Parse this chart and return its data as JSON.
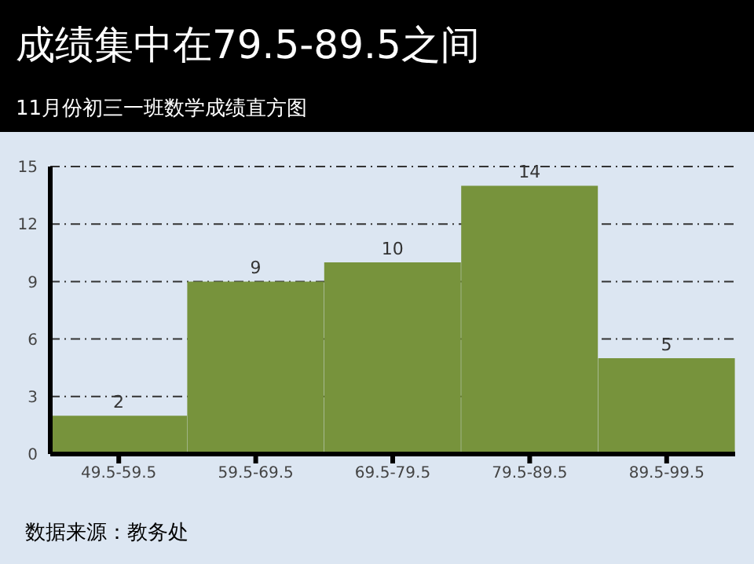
{
  "chart_data": {
    "type": "bar",
    "title": "成绩集中在79.5-89.5之间",
    "subtitle": "11月份初三一班数学成绩直方图",
    "categories": [
      "49.5-59.5",
      "59.5-69.5",
      "69.5-79.5",
      "79.5-89.5",
      "89.5-99.5"
    ],
    "values": [
      2,
      9,
      10,
      14,
      5
    ],
    "color": "#77933c",
    "ylim": [
      0,
      15
    ],
    "yticks": [
      0,
      3,
      6,
      9,
      12,
      15
    ],
    "grid": "y",
    "data_labels": true,
    "annotations": [
      "数据来源：教务处"
    ]
  }
}
